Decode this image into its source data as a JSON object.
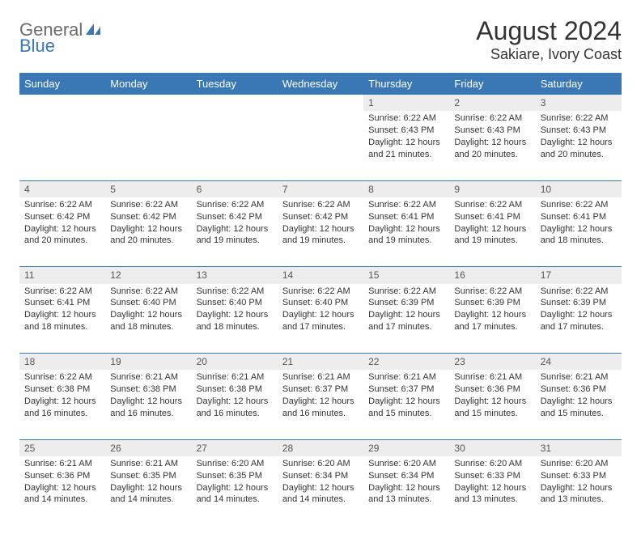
{
  "brand": {
    "part1": "General",
    "part2": "Blue"
  },
  "title": "August 2024",
  "location": "Sakiare, Ivory Coast",
  "colors": {
    "header_bg": "#3a78b5",
    "header_fg": "#ffffff",
    "daynum_bg": "#ededed",
    "text": "#333333",
    "brand_gray": "#6b6b6b",
    "brand_blue": "#3a78b5"
  },
  "day_headers": [
    "Sunday",
    "Monday",
    "Tuesday",
    "Wednesday",
    "Thursday",
    "Friday",
    "Saturday"
  ],
  "weeks": [
    [
      null,
      null,
      null,
      null,
      {
        "d": "1",
        "sr": "6:22 AM",
        "ss": "6:43 PM",
        "dl": "12 hours and 21 minutes."
      },
      {
        "d": "2",
        "sr": "6:22 AM",
        "ss": "6:43 PM",
        "dl": "12 hours and 20 minutes."
      },
      {
        "d": "3",
        "sr": "6:22 AM",
        "ss": "6:43 PM",
        "dl": "12 hours and 20 minutes."
      }
    ],
    [
      {
        "d": "4",
        "sr": "6:22 AM",
        "ss": "6:42 PM",
        "dl": "12 hours and 20 minutes."
      },
      {
        "d": "5",
        "sr": "6:22 AM",
        "ss": "6:42 PM",
        "dl": "12 hours and 20 minutes."
      },
      {
        "d": "6",
        "sr": "6:22 AM",
        "ss": "6:42 PM",
        "dl": "12 hours and 19 minutes."
      },
      {
        "d": "7",
        "sr": "6:22 AM",
        "ss": "6:42 PM",
        "dl": "12 hours and 19 minutes."
      },
      {
        "d": "8",
        "sr": "6:22 AM",
        "ss": "6:41 PM",
        "dl": "12 hours and 19 minutes."
      },
      {
        "d": "9",
        "sr": "6:22 AM",
        "ss": "6:41 PM",
        "dl": "12 hours and 19 minutes."
      },
      {
        "d": "10",
        "sr": "6:22 AM",
        "ss": "6:41 PM",
        "dl": "12 hours and 18 minutes."
      }
    ],
    [
      {
        "d": "11",
        "sr": "6:22 AM",
        "ss": "6:41 PM",
        "dl": "12 hours and 18 minutes."
      },
      {
        "d": "12",
        "sr": "6:22 AM",
        "ss": "6:40 PM",
        "dl": "12 hours and 18 minutes."
      },
      {
        "d": "13",
        "sr": "6:22 AM",
        "ss": "6:40 PM",
        "dl": "12 hours and 18 minutes."
      },
      {
        "d": "14",
        "sr": "6:22 AM",
        "ss": "6:40 PM",
        "dl": "12 hours and 17 minutes."
      },
      {
        "d": "15",
        "sr": "6:22 AM",
        "ss": "6:39 PM",
        "dl": "12 hours and 17 minutes."
      },
      {
        "d": "16",
        "sr": "6:22 AM",
        "ss": "6:39 PM",
        "dl": "12 hours and 17 minutes."
      },
      {
        "d": "17",
        "sr": "6:22 AM",
        "ss": "6:39 PM",
        "dl": "12 hours and 17 minutes."
      }
    ],
    [
      {
        "d": "18",
        "sr": "6:22 AM",
        "ss": "6:38 PM",
        "dl": "12 hours and 16 minutes."
      },
      {
        "d": "19",
        "sr": "6:21 AM",
        "ss": "6:38 PM",
        "dl": "12 hours and 16 minutes."
      },
      {
        "d": "20",
        "sr": "6:21 AM",
        "ss": "6:38 PM",
        "dl": "12 hours and 16 minutes."
      },
      {
        "d": "21",
        "sr": "6:21 AM",
        "ss": "6:37 PM",
        "dl": "12 hours and 16 minutes."
      },
      {
        "d": "22",
        "sr": "6:21 AM",
        "ss": "6:37 PM",
        "dl": "12 hours and 15 minutes."
      },
      {
        "d": "23",
        "sr": "6:21 AM",
        "ss": "6:36 PM",
        "dl": "12 hours and 15 minutes."
      },
      {
        "d": "24",
        "sr": "6:21 AM",
        "ss": "6:36 PM",
        "dl": "12 hours and 15 minutes."
      }
    ],
    [
      {
        "d": "25",
        "sr": "6:21 AM",
        "ss": "6:36 PM",
        "dl": "12 hours and 14 minutes."
      },
      {
        "d": "26",
        "sr": "6:21 AM",
        "ss": "6:35 PM",
        "dl": "12 hours and 14 minutes."
      },
      {
        "d": "27",
        "sr": "6:20 AM",
        "ss": "6:35 PM",
        "dl": "12 hours and 14 minutes."
      },
      {
        "d": "28",
        "sr": "6:20 AM",
        "ss": "6:34 PM",
        "dl": "12 hours and 14 minutes."
      },
      {
        "d": "29",
        "sr": "6:20 AM",
        "ss": "6:34 PM",
        "dl": "12 hours and 13 minutes."
      },
      {
        "d": "30",
        "sr": "6:20 AM",
        "ss": "6:33 PM",
        "dl": "12 hours and 13 minutes."
      },
      {
        "d": "31",
        "sr": "6:20 AM",
        "ss": "6:33 PM",
        "dl": "12 hours and 13 minutes."
      }
    ]
  ],
  "labels": {
    "sunrise": "Sunrise:",
    "sunset": "Sunset:",
    "daylight": "Daylight:"
  }
}
